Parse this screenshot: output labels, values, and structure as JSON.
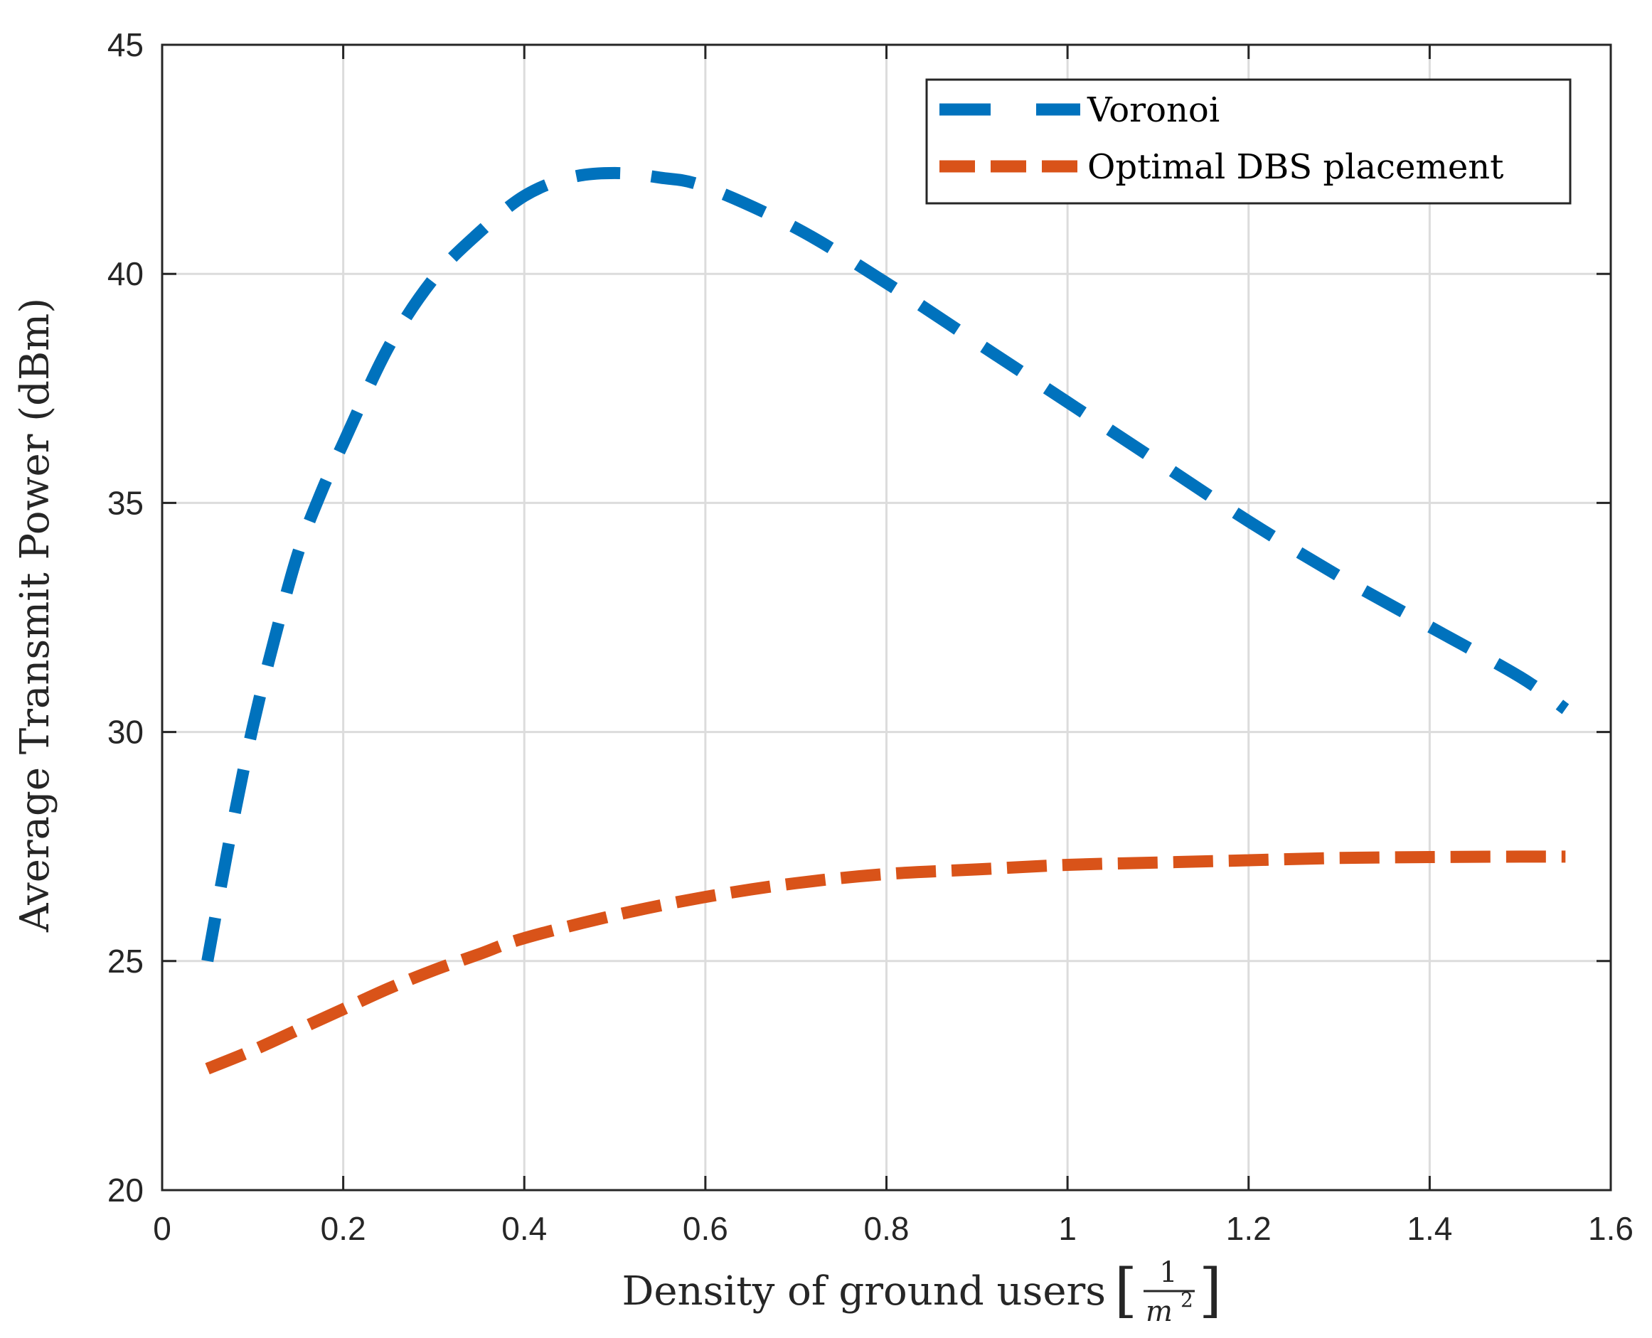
{
  "chart_data": {
    "type": "line",
    "xlabel": {
      "main": "Density of ground users",
      "unit_numerator": "1",
      "unit_denominator": "m",
      "unit_exponent": "2"
    },
    "ylabel": "Average Transmit Power (dBm)",
    "xlim": [
      0,
      1.6
    ],
    "ylim": [
      20,
      45
    ],
    "xticks": [
      0,
      0.2,
      0.4,
      0.6,
      0.8,
      1,
      1.2,
      1.4,
      1.6
    ],
    "xtick_labels": [
      "0",
      "0.2",
      "0.4",
      "0.6",
      "0.8",
      "1",
      "1.2",
      "1.4",
      "1.6"
    ],
    "yticks": [
      20,
      25,
      30,
      35,
      40,
      45
    ],
    "ytick_labels": [
      "20",
      "25",
      "30",
      "35",
      "40",
      "45"
    ],
    "grid": true,
    "legend_position": "top-right",
    "series": [
      {
        "name": "Voronoi",
        "color": "#0072BD",
        "line_style": "dashed",
        "x": [
          0.05,
          0.075,
          0.1,
          0.125,
          0.15,
          0.175,
          0.2,
          0.25,
          0.3,
          0.35,
          0.4,
          0.45,
          0.5,
          0.55,
          0.6,
          0.7,
          0.8,
          0.9,
          1.0,
          1.1,
          1.2,
          1.3,
          1.4,
          1.5,
          1.55
        ],
        "y": [
          25.0,
          27.7,
          30.1,
          32.1,
          33.9,
          35.2,
          36.3,
          38.4,
          39.9,
          40.9,
          41.7,
          42.1,
          42.2,
          42.1,
          41.9,
          41.0,
          39.8,
          38.5,
          37.2,
          35.9,
          34.6,
          33.4,
          32.3,
          31.2,
          30.5
        ]
      },
      {
        "name": "Optimal DBS placement",
        "color": "#D95319",
        "line_style": "dashed",
        "x": [
          0.05,
          0.1,
          0.15,
          0.2,
          0.25,
          0.3,
          0.35,
          0.4,
          0.5,
          0.6,
          0.7,
          0.8,
          0.9,
          1.0,
          1.1,
          1.2,
          1.3,
          1.4,
          1.5,
          1.55
        ],
        "y": [
          22.65,
          23.05,
          23.5,
          23.95,
          24.4,
          24.8,
          25.15,
          25.5,
          26.0,
          26.4,
          26.7,
          26.9,
          27.0,
          27.1,
          27.15,
          27.2,
          27.25,
          27.27,
          27.28,
          27.28
        ]
      }
    ]
  }
}
